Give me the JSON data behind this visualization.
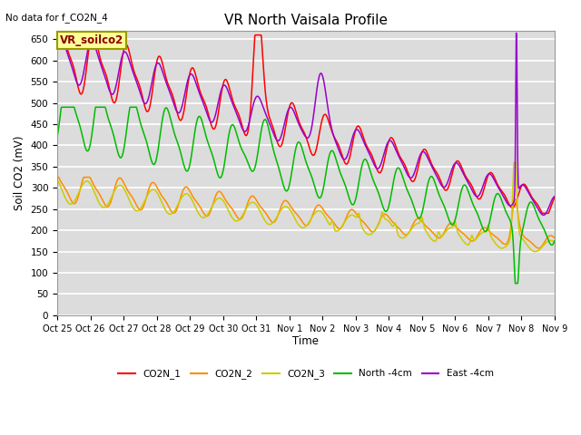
{
  "title": "VR North Vaisala Profile",
  "subtitle": "No data for f_CO2N_4",
  "xlabel": "Time",
  "ylabel": "Soil CO2 (mV)",
  "ylim": [
    0,
    670
  ],
  "yticks": [
    0,
    50,
    100,
    150,
    200,
    250,
    300,
    350,
    400,
    450,
    500,
    550,
    600,
    650
  ],
  "xtick_labels": [
    "Oct 25",
    "Oct 26",
    "Oct 27",
    "Oct 28",
    "Oct 29",
    "Oct 30",
    "Oct 31",
    "Nov 1",
    "Nov 2",
    "Nov 3",
    "Nov 4",
    "Nov 5",
    "Nov 6",
    "Nov 7",
    "Nov 8",
    "Nov 9"
  ],
  "legend_label_box": "VR_soilco2",
  "line_colors": {
    "CO2N_1": "#FF0000",
    "CO2N_2": "#FF8C00",
    "CO2N_3": "#CCCC00",
    "North_4cm": "#00BB00",
    "East_4cm": "#9900CC"
  },
  "legend_labels": [
    "CO2N_1",
    "CO2N_2",
    "CO2N_3",
    "North -4cm",
    "East -4cm"
  ],
  "fig_bg_color": "#FFFFFF",
  "plot_bg_color": "#DCDCDC",
  "grid_color": "#FFFFFF"
}
